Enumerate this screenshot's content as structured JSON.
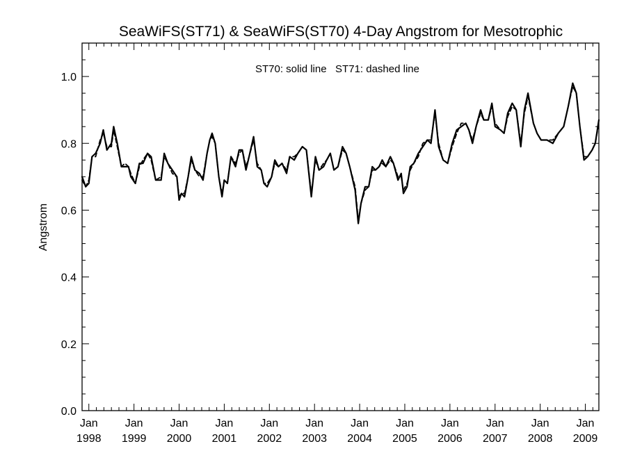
{
  "chart_data": {
    "type": "line",
    "title": "SeaWiFS(ST71) & SeaWiFS(ST70) 4-Day Angstrom for Mesotrophic",
    "annotation": "ST70: solid line   ST71: dashed line",
    "ylabel": "Angstrom",
    "xlabel": "",
    "xlim": [
      1997.85,
      2009.3
    ],
    "ylim": [
      0.0,
      1.1
    ],
    "grid": false,
    "y_ticks": [
      "0.0",
      "0.2",
      "0.4",
      "0.6",
      "0.8",
      "1.0"
    ],
    "x_ticks": [
      {
        "x": 1998,
        "month": "Jan",
        "year": "1998"
      },
      {
        "x": 1999,
        "month": "Jan",
        "year": "1999"
      },
      {
        "x": 2000,
        "month": "Jan",
        "year": "2000"
      },
      {
        "x": 2001,
        "month": "Jan",
        "year": "2001"
      },
      {
        "x": 2002,
        "month": "Jan",
        "year": "2002"
      },
      {
        "x": 2003,
        "month": "Jan",
        "year": "2003"
      },
      {
        "x": 2004,
        "month": "Jan",
        "year": "2004"
      },
      {
        "x": 2005,
        "month": "Jan",
        "year": "2005"
      },
      {
        "x": 2006,
        "month": "Jan",
        "year": "2006"
      },
      {
        "x": 2007,
        "month": "Jan",
        "year": "2007"
      },
      {
        "x": 2008,
        "month": "Jan",
        "year": "2008"
      },
      {
        "x": 2009,
        "month": "Jan",
        "year": "2009"
      }
    ],
    "series": [
      {
        "name": "ST70",
        "style": "solid",
        "color": "#000000",
        "points": [
          [
            1997.85,
            0.7
          ],
          [
            1997.93,
            0.67
          ],
          [
            1998.0,
            0.68
          ],
          [
            1998.07,
            0.76
          ],
          [
            1998.15,
            0.77
          ],
          [
            1998.25,
            0.8
          ],
          [
            1998.32,
            0.84
          ],
          [
            1998.4,
            0.78
          ],
          [
            1998.5,
            0.8
          ],
          [
            1998.55,
            0.85
          ],
          [
            1998.63,
            0.8
          ],
          [
            1998.72,
            0.73
          ],
          [
            1998.8,
            0.73
          ],
          [
            1998.88,
            0.73
          ],
          [
            1998.93,
            0.7
          ],
          [
            1999.03,
            0.68
          ],
          [
            1999.12,
            0.74
          ],
          [
            1999.2,
            0.74
          ],
          [
            1999.3,
            0.77
          ],
          [
            1999.38,
            0.76
          ],
          [
            1999.48,
            0.69
          ],
          [
            1999.6,
            0.69
          ],
          [
            1999.67,
            0.77
          ],
          [
            1999.75,
            0.74
          ],
          [
            1999.85,
            0.72
          ],
          [
            1999.95,
            0.7
          ],
          [
            2000.0,
            0.63
          ],
          [
            2000.05,
            0.65
          ],
          [
            2000.12,
            0.64
          ],
          [
            2000.2,
            0.7
          ],
          [
            2000.27,
            0.76
          ],
          [
            2000.35,
            0.72
          ],
          [
            2000.45,
            0.71
          ],
          [
            2000.53,
            0.69
          ],
          [
            2000.62,
            0.77
          ],
          [
            2000.68,
            0.81
          ],
          [
            2000.73,
            0.83
          ],
          [
            2000.8,
            0.8
          ],
          [
            2000.88,
            0.7
          ],
          [
            2000.95,
            0.64
          ],
          [
            2001.0,
            0.69
          ],
          [
            2001.07,
            0.68
          ],
          [
            2001.15,
            0.76
          ],
          [
            2001.25,
            0.73
          ],
          [
            2001.33,
            0.78
          ],
          [
            2001.4,
            0.78
          ],
          [
            2001.48,
            0.72
          ],
          [
            2001.55,
            0.76
          ],
          [
            2001.65,
            0.82
          ],
          [
            2001.73,
            0.73
          ],
          [
            2001.82,
            0.72
          ],
          [
            2001.88,
            0.68
          ],
          [
            2001.95,
            0.67
          ],
          [
            2002.05,
            0.7
          ],
          [
            2002.12,
            0.75
          ],
          [
            2002.2,
            0.73
          ],
          [
            2002.28,
            0.74
          ],
          [
            2002.38,
            0.71
          ],
          [
            2002.45,
            0.76
          ],
          [
            2002.55,
            0.75
          ],
          [
            2002.63,
            0.77
          ],
          [
            2002.73,
            0.79
          ],
          [
            2002.82,
            0.78
          ],
          [
            2002.93,
            0.64
          ],
          [
            2003.02,
            0.76
          ],
          [
            2003.1,
            0.72
          ],
          [
            2003.2,
            0.73
          ],
          [
            2003.27,
            0.75
          ],
          [
            2003.35,
            0.77
          ],
          [
            2003.43,
            0.72
          ],
          [
            2003.52,
            0.73
          ],
          [
            2003.62,
            0.79
          ],
          [
            2003.7,
            0.77
          ],
          [
            2003.78,
            0.73
          ],
          [
            2003.9,
            0.66
          ],
          [
            2003.97,
            0.56
          ],
          [
            2004.03,
            0.62
          ],
          [
            2004.12,
            0.67
          ],
          [
            2004.2,
            0.67
          ],
          [
            2004.28,
            0.73
          ],
          [
            2004.35,
            0.72
          ],
          [
            2004.43,
            0.73
          ],
          [
            2004.5,
            0.75
          ],
          [
            2004.58,
            0.73
          ],
          [
            2004.68,
            0.76
          ],
          [
            2004.75,
            0.74
          ],
          [
            2004.85,
            0.69
          ],
          [
            2004.92,
            0.71
          ],
          [
            2004.97,
            0.65
          ],
          [
            2005.05,
            0.67
          ],
          [
            2005.12,
            0.73
          ],
          [
            2005.2,
            0.74
          ],
          [
            2005.3,
            0.77
          ],
          [
            2005.4,
            0.79
          ],
          [
            2005.5,
            0.81
          ],
          [
            2005.58,
            0.8
          ],
          [
            2005.67,
            0.9
          ],
          [
            2005.75,
            0.79
          ],
          [
            2005.85,
            0.75
          ],
          [
            2005.95,
            0.74
          ],
          [
            2006.05,
            0.8
          ],
          [
            2006.15,
            0.84
          ],
          [
            2006.25,
            0.85
          ],
          [
            2006.35,
            0.86
          ],
          [
            2006.42,
            0.84
          ],
          [
            2006.5,
            0.8
          ],
          [
            2006.58,
            0.85
          ],
          [
            2006.68,
            0.9
          ],
          [
            2006.75,
            0.87
          ],
          [
            2006.85,
            0.87
          ],
          [
            2006.93,
            0.92
          ],
          [
            2007.0,
            0.85
          ],
          [
            2007.12,
            0.84
          ],
          [
            2007.2,
            0.83
          ],
          [
            2007.28,
            0.89
          ],
          [
            2007.38,
            0.92
          ],
          [
            2007.47,
            0.9
          ],
          [
            2007.57,
            0.79
          ],
          [
            2007.65,
            0.9
          ],
          [
            2007.73,
            0.95
          ],
          [
            2007.85,
            0.86
          ],
          [
            2007.93,
            0.83
          ],
          [
            2008.02,
            0.81
          ],
          [
            2008.15,
            0.81
          ],
          [
            2008.28,
            0.8
          ],
          [
            2008.4,
            0.83
          ],
          [
            2008.52,
            0.85
          ],
          [
            2008.62,
            0.91
          ],
          [
            2008.72,
            0.98
          ],
          [
            2008.8,
            0.95
          ],
          [
            2008.88,
            0.85
          ],
          [
            2008.97,
            0.75
          ],
          [
            2009.05,
            0.76
          ],
          [
            2009.15,
            0.78
          ],
          [
            2009.22,
            0.8
          ],
          [
            2009.3,
            0.87
          ]
        ]
      },
      {
        "name": "ST71",
        "style": "dashed",
        "color": "#000000",
        "points": [
          [
            1997.85,
            0.69
          ],
          [
            1997.93,
            0.67
          ],
          [
            1998.0,
            0.69
          ],
          [
            1998.07,
            0.76
          ],
          [
            1998.15,
            0.76
          ],
          [
            1998.25,
            0.81
          ],
          [
            1998.32,
            0.83
          ],
          [
            1998.4,
            0.79
          ],
          [
            1998.5,
            0.79
          ],
          [
            1998.55,
            0.84
          ],
          [
            1998.63,
            0.79
          ],
          [
            1998.72,
            0.73
          ],
          [
            1998.8,
            0.74
          ],
          [
            1998.88,
            0.73
          ],
          [
            1998.93,
            0.71
          ],
          [
            1999.03,
            0.68
          ],
          [
            1999.12,
            0.73
          ],
          [
            1999.2,
            0.75
          ],
          [
            1999.3,
            0.77
          ],
          [
            1999.38,
            0.75
          ],
          [
            1999.48,
            0.69
          ],
          [
            1999.6,
            0.7
          ],
          [
            1999.67,
            0.76
          ],
          [
            1999.75,
            0.74
          ],
          [
            1999.85,
            0.71
          ],
          [
            1999.95,
            0.7
          ],
          [
            2000.0,
            0.64
          ],
          [
            2000.05,
            0.65
          ],
          [
            2000.12,
            0.65
          ],
          [
            2000.2,
            0.7
          ],
          [
            2000.27,
            0.75
          ],
          [
            2000.35,
            0.72
          ],
          [
            2000.45,
            0.7
          ],
          [
            2000.53,
            0.7
          ],
          [
            2000.62,
            0.77
          ],
          [
            2000.68,
            0.81
          ],
          [
            2000.73,
            0.82
          ],
          [
            2000.8,
            0.8
          ],
          [
            2000.88,
            0.7
          ],
          [
            2000.95,
            0.65
          ],
          [
            2001.0,
            0.69
          ],
          [
            2001.07,
            0.68
          ],
          [
            2001.15,
            0.76
          ],
          [
            2001.25,
            0.74
          ],
          [
            2001.33,
            0.77
          ],
          [
            2001.4,
            0.78
          ],
          [
            2001.48,
            0.73
          ],
          [
            2001.55,
            0.76
          ],
          [
            2001.65,
            0.81
          ],
          [
            2001.73,
            0.74
          ],
          [
            2001.82,
            0.72
          ],
          [
            2001.88,
            0.68
          ],
          [
            2001.95,
            0.68
          ],
          [
            2002.05,
            0.7
          ],
          [
            2002.12,
            0.74
          ],
          [
            2002.2,
            0.73
          ],
          [
            2002.28,
            0.74
          ],
          [
            2002.38,
            0.72
          ],
          [
            2002.45,
            0.76
          ],
          [
            2002.55,
            0.76
          ],
          [
            2002.63,
            0.77
          ],
          [
            2002.73,
            0.79
          ],
          [
            2002.82,
            0.78
          ],
          [
            2002.93,
            0.65
          ],
          [
            2003.02,
            0.75
          ],
          [
            2003.1,
            0.72
          ],
          [
            2003.2,
            0.74
          ],
          [
            2003.27,
            0.75
          ],
          [
            2003.35,
            0.77
          ],
          [
            2003.43,
            0.72
          ],
          [
            2003.52,
            0.73
          ],
          [
            2003.62,
            0.78
          ],
          [
            2003.7,
            0.77
          ],
          [
            2003.78,
            0.73
          ],
          [
            2003.9,
            0.67
          ],
          [
            2003.97,
            0.57
          ],
          [
            2004.03,
            0.62
          ],
          [
            2004.12,
            0.66
          ],
          [
            2004.2,
            0.67
          ],
          [
            2004.28,
            0.72
          ],
          [
            2004.35,
            0.72
          ],
          [
            2004.43,
            0.73
          ],
          [
            2004.5,
            0.74
          ],
          [
            2004.58,
            0.73
          ],
          [
            2004.68,
            0.75
          ],
          [
            2004.75,
            0.74
          ],
          [
            2004.85,
            0.7
          ],
          [
            2004.92,
            0.7
          ],
          [
            2004.97,
            0.66
          ],
          [
            2005.05,
            0.68
          ],
          [
            2005.12,
            0.72
          ],
          [
            2005.2,
            0.74
          ],
          [
            2005.3,
            0.76
          ],
          [
            2005.4,
            0.8
          ],
          [
            2005.5,
            0.81
          ],
          [
            2005.58,
            0.81
          ],
          [
            2005.67,
            0.89
          ],
          [
            2005.75,
            0.8
          ],
          [
            2005.85,
            0.75
          ],
          [
            2005.95,
            0.74
          ],
          [
            2006.05,
            0.79
          ],
          [
            2006.15,
            0.83
          ],
          [
            2006.25,
            0.86
          ],
          [
            2006.35,
            0.86
          ],
          [
            2006.42,
            0.84
          ],
          [
            2006.5,
            0.81
          ],
          [
            2006.58,
            0.85
          ],
          [
            2006.68,
            0.89
          ],
          [
            2006.75,
            0.87
          ],
          [
            2006.85,
            0.87
          ],
          [
            2006.93,
            0.91
          ],
          [
            2007.0,
            0.86
          ],
          [
            2007.12,
            0.84
          ],
          [
            2007.2,
            0.83
          ],
          [
            2007.28,
            0.88
          ],
          [
            2007.38,
            0.91
          ],
          [
            2007.47,
            0.9
          ],
          [
            2007.57,
            0.8
          ],
          [
            2007.65,
            0.89
          ],
          [
            2007.73,
            0.94
          ],
          [
            2007.85,
            0.86
          ],
          [
            2007.93,
            0.83
          ],
          [
            2008.02,
            0.81
          ],
          [
            2008.15,
            0.81
          ],
          [
            2008.28,
            0.81
          ],
          [
            2008.4,
            0.83
          ],
          [
            2008.52,
            0.85
          ],
          [
            2008.62,
            0.91
          ],
          [
            2008.72,
            0.97
          ],
          [
            2008.8,
            0.95
          ],
          [
            2008.88,
            0.85
          ],
          [
            2008.97,
            0.76
          ],
          [
            2009.05,
            0.76
          ],
          [
            2009.15,
            0.78
          ],
          [
            2009.22,
            0.8
          ],
          [
            2009.3,
            0.86
          ]
        ]
      }
    ]
  }
}
